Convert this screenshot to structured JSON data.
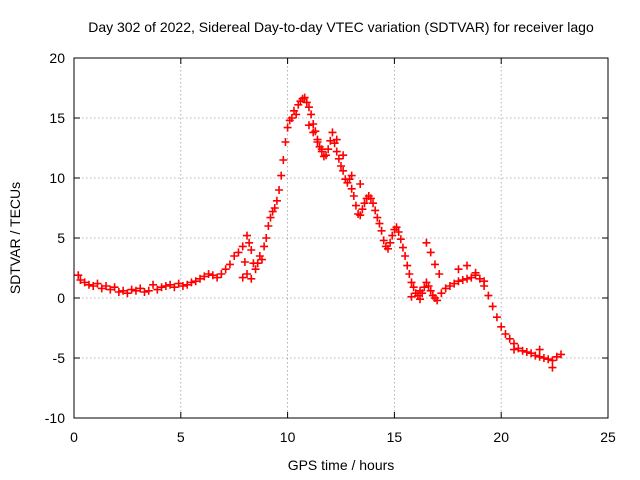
{
  "chart_data": {
    "type": "scatter",
    "title": "Day 302 of 2022, Sidereal Day-to-day VTEC variation (SDTVAR) for receiver lago",
    "xlabel": "GPS time / hours",
    "ylabel": "SDTVAR / TECUs",
    "xlim": [
      0,
      25
    ],
    "ylim": [
      -10,
      20
    ],
    "xticks": [
      0,
      5,
      10,
      15,
      20,
      25
    ],
    "yticks": [
      -10,
      -5,
      0,
      5,
      10,
      15,
      20
    ],
    "grid": true,
    "marker": "+",
    "color": "#ff0000",
    "series": [
      {
        "name": "SDTVAR",
        "points": [
          [
            0.2,
            1.9
          ],
          [
            0.3,
            1.5
          ],
          [
            0.5,
            1.3
          ],
          [
            0.7,
            1.1
          ],
          [
            0.9,
            1.0
          ],
          [
            1.1,
            1.2
          ],
          [
            1.3,
            0.8
          ],
          [
            1.5,
            1.0
          ],
          [
            1.7,
            0.7
          ],
          [
            1.9,
            0.9
          ],
          [
            2.1,
            0.5
          ],
          [
            2.3,
            0.6
          ],
          [
            2.5,
            0.4
          ],
          [
            2.7,
            0.7
          ],
          [
            2.9,
            0.6
          ],
          [
            3.1,
            0.8
          ],
          [
            3.3,
            0.5
          ],
          [
            3.5,
            0.6
          ],
          [
            3.7,
            1.1
          ],
          [
            3.9,
            0.7
          ],
          [
            4.1,
            0.9
          ],
          [
            4.3,
            1.0
          ],
          [
            4.5,
            1.1
          ],
          [
            4.7,
            0.9
          ],
          [
            4.9,
            1.2
          ],
          [
            5.1,
            1.0
          ],
          [
            5.3,
            1.1
          ],
          [
            5.5,
            1.3
          ],
          [
            5.7,
            1.4
          ],
          [
            5.9,
            1.6
          ],
          [
            6.1,
            1.8
          ],
          [
            6.3,
            2.0
          ],
          [
            6.5,
            1.9
          ],
          [
            6.7,
            1.7
          ],
          [
            6.9,
            2.0
          ],
          [
            7.1,
            2.4
          ],
          [
            7.3,
            2.8
          ],
          [
            7.5,
            3.5
          ],
          [
            7.7,
            3.8
          ],
          [
            7.9,
            4.3
          ],
          [
            8.0,
            3.0
          ],
          [
            8.1,
            5.2
          ],
          [
            8.2,
            4.6
          ],
          [
            8.3,
            4.0
          ],
          [
            8.4,
            2.9
          ],
          [
            8.5,
            2.4
          ],
          [
            8.6,
            2.9
          ],
          [
            8.7,
            3.5
          ],
          [
            8.8,
            3.2
          ],
          [
            8.9,
            4.3
          ],
          [
            9.0,
            5.0
          ],
          [
            9.1,
            6.0
          ],
          [
            9.2,
            6.7
          ],
          [
            9.3,
            7.2
          ],
          [
            9.4,
            7.5
          ],
          [
            9.5,
            8.1
          ],
          [
            9.6,
            9.0
          ],
          [
            9.7,
            10.2
          ],
          [
            9.8,
            11.5
          ],
          [
            9.9,
            13.0
          ],
          [
            10.0,
            14.2
          ],
          [
            10.1,
            14.8
          ],
          [
            10.2,
            15.0
          ],
          [
            10.3,
            15.6
          ],
          [
            10.4,
            15.3
          ],
          [
            10.5,
            16.1
          ],
          [
            10.6,
            16.4
          ],
          [
            10.7,
            16.6
          ],
          [
            10.8,
            16.7
          ],
          [
            10.9,
            16.3
          ],
          [
            11.0,
            15.9
          ],
          [
            11.1,
            15.3
          ],
          [
            11.2,
            14.5
          ],
          [
            11.3,
            13.9
          ],
          [
            11.4,
            13.2
          ],
          [
            11.5,
            12.6
          ],
          [
            11.6,
            12.2
          ],
          [
            11.7,
            11.8
          ],
          [
            11.8,
            11.9
          ],
          [
            11.9,
            12.4
          ],
          [
            12.0,
            13.1
          ],
          [
            12.1,
            13.8
          ],
          [
            12.2,
            12.9
          ],
          [
            12.3,
            12.2
          ],
          [
            12.4,
            11.6
          ],
          [
            12.5,
            11.0
          ],
          [
            12.6,
            10.6
          ],
          [
            12.7,
            9.9
          ],
          [
            12.8,
            9.6
          ],
          [
            12.9,
            9.9
          ],
          [
            13.0,
            9.1
          ],
          [
            13.1,
            8.5
          ],
          [
            13.2,
            7.7
          ],
          [
            13.3,
            7.0
          ],
          [
            13.4,
            6.9
          ],
          [
            13.5,
            7.4
          ],
          [
            13.6,
            7.9
          ],
          [
            13.7,
            8.3
          ],
          [
            13.8,
            8.5
          ],
          [
            13.9,
            8.3
          ],
          [
            14.0,
            7.9
          ],
          [
            14.1,
            7.3
          ],
          [
            14.2,
            6.7
          ],
          [
            14.3,
            6.2
          ],
          [
            14.4,
            5.6
          ],
          [
            14.5,
            4.8
          ],
          [
            14.6,
            4.3
          ],
          [
            14.7,
            4.1
          ],
          [
            14.8,
            4.6
          ],
          [
            14.9,
            5.2
          ],
          [
            15.0,
            5.7
          ],
          [
            15.1,
            5.9
          ],
          [
            15.2,
            5.5
          ],
          [
            15.3,
            4.9
          ],
          [
            15.4,
            4.2
          ],
          [
            15.5,
            3.5
          ],
          [
            15.6,
            2.7
          ],
          [
            15.7,
            2.0
          ],
          [
            15.8,
            1.3
          ],
          [
            15.9,
            0.9
          ],
          [
            16.0,
            0.4
          ],
          [
            16.1,
            0.2
          ],
          [
            16.2,
            -0.1
          ],
          [
            16.3,
            0.4
          ],
          [
            16.4,
            0.9
          ],
          [
            16.5,
            1.3
          ],
          [
            16.6,
            1.0
          ],
          [
            16.7,
            0.6
          ],
          [
            16.8,
            0.2
          ],
          [
            16.9,
            0.0
          ],
          [
            17.0,
            -0.2
          ],
          [
            17.2,
            0.4
          ],
          [
            17.4,
            0.8
          ],
          [
            17.6,
            1.0
          ],
          [
            17.8,
            1.2
          ],
          [
            18.0,
            1.4
          ],
          [
            18.2,
            1.5
          ],
          [
            18.4,
            1.6
          ],
          [
            18.6,
            1.7
          ],
          [
            18.8,
            1.9
          ],
          [
            19.0,
            1.6
          ],
          [
            19.2,
            1.0
          ],
          [
            19.4,
            0.2
          ],
          [
            19.6,
            -0.7
          ],
          [
            19.8,
            -1.6
          ],
          [
            20.0,
            -2.4
          ],
          [
            20.2,
            -3.0
          ],
          [
            20.4,
            -3.4
          ],
          [
            20.6,
            -3.8
          ],
          [
            20.8,
            -4.2
          ],
          [
            21.0,
            -4.4
          ],
          [
            21.2,
            -4.5
          ],
          [
            21.4,
            -4.6
          ],
          [
            21.6,
            -4.8
          ],
          [
            21.8,
            -4.9
          ],
          [
            22.0,
            -5.0
          ],
          [
            22.2,
            -5.1
          ],
          [
            22.4,
            -5.2
          ],
          [
            22.6,
            -4.9
          ],
          [
            22.8,
            -4.7
          ],
          [
            11.0,
            14.4
          ],
          [
            11.2,
            13.8
          ],
          [
            11.4,
            13.0
          ],
          [
            11.6,
            12.4
          ],
          [
            12.3,
            13.2
          ],
          [
            12.6,
            11.9
          ],
          [
            13.0,
            10.2
          ],
          [
            13.4,
            9.5
          ],
          [
            16.5,
            4.6
          ],
          [
            16.7,
            3.8
          ],
          [
            16.9,
            2.8
          ],
          [
            17.1,
            2.0
          ],
          [
            18.0,
            2.4
          ],
          [
            18.4,
            2.7
          ],
          [
            18.8,
            2.1
          ],
          [
            19.2,
            1.4
          ],
          [
            7.9,
            1.7
          ],
          [
            8.1,
            2.0
          ],
          [
            8.3,
            1.6
          ],
          [
            15.8,
            0.1
          ],
          [
            16.2,
            0.6
          ],
          [
            20.6,
            -4.3
          ],
          [
            21.8,
            -4.3
          ],
          [
            22.4,
            -5.8
          ]
        ]
      }
    ]
  }
}
